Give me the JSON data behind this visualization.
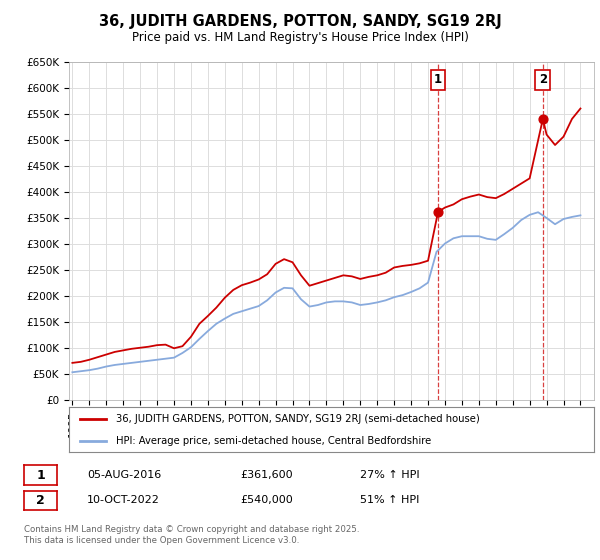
{
  "title": "36, JUDITH GARDENS, POTTON, SANDY, SG19 2RJ",
  "subtitle": "Price paid vs. HM Land Registry's House Price Index (HPI)",
  "background_color": "#ffffff",
  "grid_color": "#dddddd",
  "red_line_color": "#cc0000",
  "blue_line_color": "#88aadd",
  "xlim": [
    1994.8,
    2025.8
  ],
  "ylim": [
    0,
    650000
  ],
  "yticks": [
    0,
    50000,
    100000,
    150000,
    200000,
    250000,
    300000,
    350000,
    400000,
    450000,
    500000,
    550000,
    600000,
    650000
  ],
  "ytick_labels": [
    "£0",
    "£50K",
    "£100K",
    "£150K",
    "£200K",
    "£250K",
    "£300K",
    "£350K",
    "£400K",
    "£450K",
    "£500K",
    "£550K",
    "£600K",
    "£650K"
  ],
  "sale1_date": 2016.59,
  "sale1_price": 361600,
  "sale1_label": "1",
  "sale1_info": "05-AUG-2016",
  "sale1_amount": "£361,600",
  "sale1_hpi": "27% ↑ HPI",
  "sale2_date": 2022.78,
  "sale2_price": 540000,
  "sale2_label": "2",
  "sale2_info": "10-OCT-2022",
  "sale2_amount": "£540,000",
  "sale2_hpi": "51% ↑ HPI",
  "legend_line1": "36, JUDITH GARDENS, POTTON, SANDY, SG19 2RJ (semi-detached house)",
  "legend_line2": "HPI: Average price, semi-detached house, Central Bedfordshire",
  "footnote": "Contains HM Land Registry data © Crown copyright and database right 2025.\nThis data is licensed under the Open Government Licence v3.0.",
  "red_x": [
    1995.0,
    1995.5,
    1996.0,
    1996.5,
    1997.0,
    1997.5,
    1998.0,
    1998.5,
    1999.0,
    1999.5,
    2000.0,
    2000.5,
    2001.0,
    2001.5,
    2002.0,
    2002.5,
    2003.0,
    2003.5,
    2004.0,
    2004.5,
    2005.0,
    2005.5,
    2006.0,
    2006.5,
    2007.0,
    2007.5,
    2008.0,
    2008.5,
    2009.0,
    2009.5,
    2010.0,
    2010.5,
    2011.0,
    2011.5,
    2012.0,
    2012.5,
    2013.0,
    2013.5,
    2014.0,
    2014.5,
    2015.0,
    2015.5,
    2016.0,
    2016.59,
    2017.0,
    2017.5,
    2018.0,
    2018.5,
    2019.0,
    2019.5,
    2020.0,
    2020.5,
    2021.0,
    2021.5,
    2022.0,
    2022.78,
    2023.0,
    2023.5,
    2024.0,
    2024.5,
    2025.0
  ],
  "red_y": [
    72000,
    74000,
    78000,
    83000,
    88000,
    93000,
    96000,
    99000,
    101000,
    103000,
    106000,
    107000,
    100000,
    104000,
    122000,
    147000,
    162000,
    178000,
    197000,
    212000,
    221000,
    226000,
    232000,
    242000,
    262000,
    271000,
    265000,
    240000,
    220000,
    225000,
    230000,
    235000,
    240000,
    238000,
    233000,
    237000,
    240000,
    245000,
    255000,
    258000,
    260000,
    263000,
    268000,
    361600,
    370000,
    376000,
    386000,
    391000,
    395000,
    390000,
    388000,
    396000,
    406000,
    416000,
    426000,
    540000,
    510000,
    490000,
    506000,
    540000,
    560000
  ],
  "blue_x": [
    1995.0,
    1995.5,
    1996.0,
    1996.5,
    1997.0,
    1997.5,
    1998.0,
    1998.5,
    1999.0,
    1999.5,
    2000.0,
    2000.5,
    2001.0,
    2001.5,
    2002.0,
    2002.5,
    2003.0,
    2003.5,
    2004.0,
    2004.5,
    2005.0,
    2005.5,
    2006.0,
    2006.5,
    2007.0,
    2007.5,
    2008.0,
    2008.5,
    2009.0,
    2009.5,
    2010.0,
    2010.5,
    2011.0,
    2011.5,
    2012.0,
    2012.5,
    2013.0,
    2013.5,
    2014.0,
    2014.5,
    2015.0,
    2015.5,
    2016.0,
    2016.5,
    2017.0,
    2017.5,
    2018.0,
    2018.5,
    2019.0,
    2019.5,
    2020.0,
    2020.5,
    2021.0,
    2021.5,
    2022.0,
    2022.5,
    2023.0,
    2023.5,
    2024.0,
    2024.5,
    2025.0
  ],
  "blue_y": [
    54000,
    56000,
    58000,
    61000,
    65000,
    68000,
    70000,
    72000,
    74000,
    76000,
    78000,
    80000,
    82000,
    91000,
    102000,
    118000,
    133000,
    147000,
    157000,
    166000,
    171000,
    176000,
    181000,
    192000,
    207000,
    216000,
    215000,
    194000,
    180000,
    183000,
    188000,
    190000,
    190000,
    188000,
    183000,
    185000,
    188000,
    192000,
    198000,
    202000,
    208000,
    215000,
    226000,
    285000,
    301000,
    311000,
    315000,
    315000,
    315000,
    310000,
    308000,
    319000,
    331000,
    346000,
    356000,
    361000,
    350000,
    338000,
    348000,
    352000,
    355000
  ]
}
